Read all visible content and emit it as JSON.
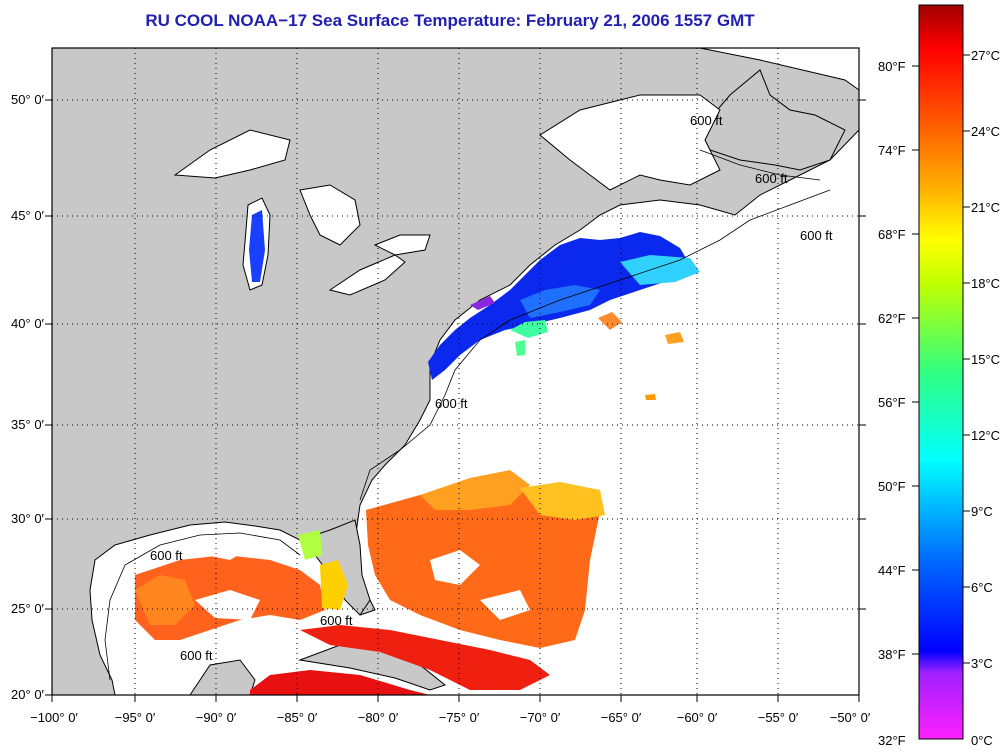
{
  "title": "RU COOL  NOAA−17  Sea Surface Temperature:  February 21, 2006 1557 GMT",
  "longitude_labels": [
    "−100° 0′",
    "−95° 0′",
    "−90° 0′",
    "−85° 0′",
    "−80° 0′",
    "−75° 0′",
    "−70° 0′",
    "−65° 0′",
    "−60° 0′",
    "−55° 0′",
    "−50° 0′"
  ],
  "latitude_labels": [
    "50° 0′",
    "45° 0′",
    "40° 0′",
    "35° 0′",
    "30° 0′",
    "25° 0′",
    "20° 0′"
  ],
  "colorbar": {
    "fahrenheit_labels": [
      "80°F",
      "74°F",
      "68°F",
      "62°F",
      "56°F",
      "50°F",
      "44°F",
      "38°F",
      "32°F"
    ],
    "celsius_labels": [
      "27°C",
      "24°C",
      "21°C",
      "18°C",
      "15°C",
      "12°C",
      "9°C",
      "6°C",
      "3°C",
      "0°C"
    ],
    "colors": [
      "#ff00ff",
      "#8000ff",
      "#0000ff",
      "#0080ff",
      "#00ffff",
      "#00ff80",
      "#80ff00",
      "#ffff00",
      "#ffa000",
      "#ff6000",
      "#ff0000",
      "#800000"
    ]
  },
  "isobath_label": "600 ft",
  "colors": {
    "land": "#c8c8c8",
    "sea_cloud": "#ffffff",
    "title": "#1f1fb0"
  }
}
